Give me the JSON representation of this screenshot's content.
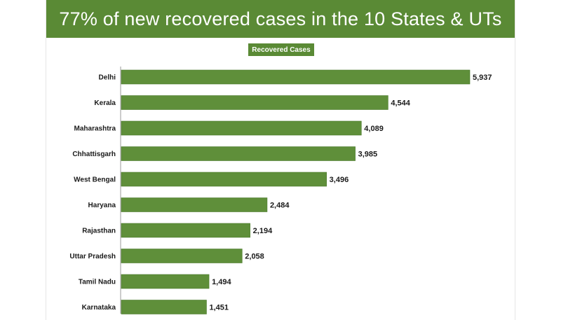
{
  "chart_data": {
    "type": "bar",
    "orientation": "horizontal",
    "title": "77% of new recovered cases in the 10 States & UTs",
    "series_label": "Recovered Cases",
    "categories": [
      "Delhi",
      "Kerala",
      "Maharashtra",
      "Chhattisgarh",
      "West Bengal",
      "Haryana",
      "Rajasthan",
      "Uttar Pradesh",
      "Tamil Nadu",
      "Karnataka"
    ],
    "values": [
      5937,
      4544,
      4089,
      3985,
      3496,
      2484,
      2194,
      2058,
      1494,
      1451
    ],
    "value_labels": [
      "5,937",
      "4,544",
      "4,089",
      "3,985",
      "3,496",
      "2,484",
      "2,194",
      "2,058",
      "1,494",
      "1,451"
    ],
    "xlim": [
      0,
      5937
    ],
    "bar_color": "#5f8f3a",
    "header_color": "#5a8a35"
  }
}
